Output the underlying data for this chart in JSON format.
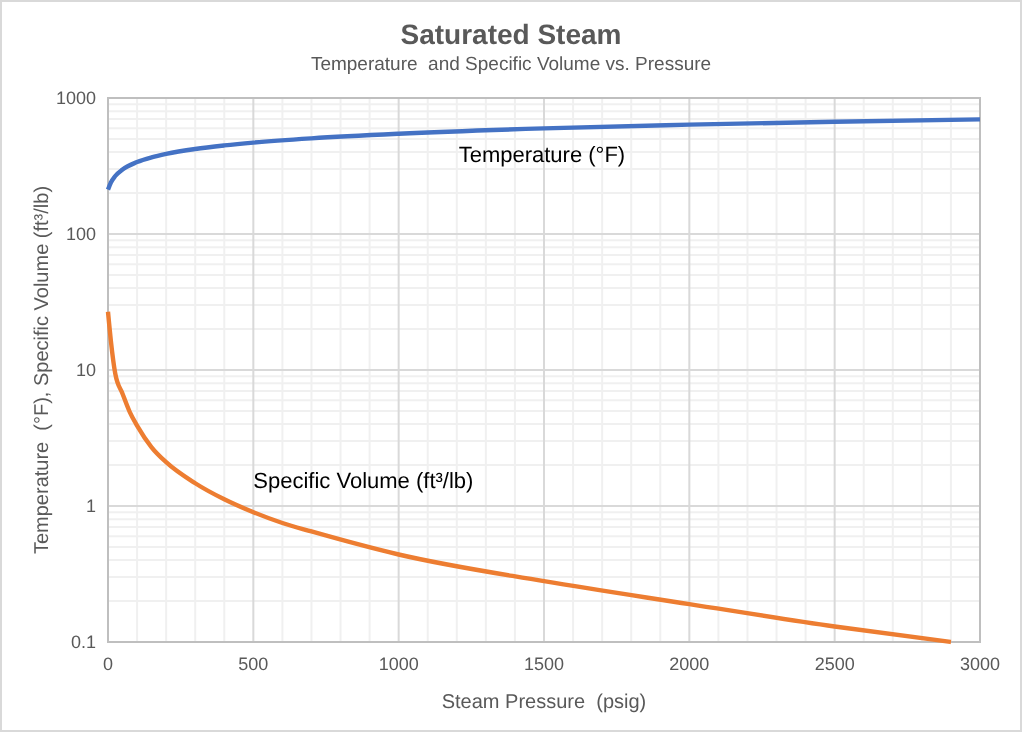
{
  "chart_data": {
    "type": "line",
    "title": "Saturated Steam",
    "subtitle": "Temperature  and Specific Volume vs. Pressure",
    "xlabel": "Steam Pressure  (psig)",
    "ylabel": "Temperature  (°F), Specific Volume (ft³/lb)",
    "xlim": [
      0,
      3000
    ],
    "xticks": [
      0,
      500,
      1000,
      1500,
      2000,
      2500,
      3000
    ],
    "ylim": [
      0.1,
      1000
    ],
    "yticks": [
      0.1,
      1,
      10,
      100,
      1000
    ],
    "log": "y",
    "grid": true,
    "marker": "none",
    "line_style": "solid",
    "series": [
      {
        "name": "Temperature (°F)",
        "color": "#4472c4",
        "x": [
          0,
          10,
          25,
          50,
          100,
          150,
          200,
          300,
          400,
          500,
          700,
          1000,
          1500,
          2000,
          2500,
          3000
        ],
        "values": [
          212,
          239,
          267,
          298,
          338,
          366,
          388,
          422,
          448,
          470,
          505,
          546,
          598,
          637,
          669,
          696
        ]
      },
      {
        "name": "Specific Volume (ft³/lb)",
        "color": "#ed7d31",
        "x": [
          0,
          10,
          25,
          50,
          75,
          100,
          150,
          200,
          300,
          400,
          500,
          600,
          700,
          1000,
          1500,
          2000,
          2500,
          2900
        ],
        "values": [
          26.8,
          16.3,
          9.4,
          6.7,
          4.9,
          3.9,
          2.7,
          2.1,
          1.47,
          1.12,
          0.9,
          0.75,
          0.65,
          0.44,
          0.28,
          0.19,
          0.13,
          0.1
        ]
      }
    ]
  }
}
